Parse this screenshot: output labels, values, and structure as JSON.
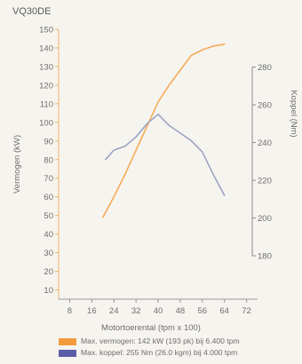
{
  "chart_data": {
    "type": "line",
    "title": "VQ30DE",
    "xlabel": "Motortoerental (tpm x 100)",
    "ylabel_left": "Vermogen (kW)",
    "ylabel_right": "Koppel (Nm)",
    "x_ticks": [
      8,
      16,
      24,
      32,
      40,
      48,
      56,
      64,
      72
    ],
    "xlim": [
      4,
      76
    ],
    "y_left_ticks": [
      10,
      20,
      30,
      40,
      50,
      60,
      70,
      80,
      90,
      100,
      110,
      120,
      130,
      140,
      150
    ],
    "y_left_lim": [
      5,
      150
    ],
    "y_right_ticks": [
      180,
      200,
      220,
      240,
      260,
      280
    ],
    "y_right_lim": [
      157,
      300
    ],
    "grid": false,
    "legend_position": "bottom",
    "series": [
      {
        "name": "Max. vermogen: 142 kW (193 pk) bij 6.400 tpm",
        "axis": "left",
        "color": "#f6ab5a",
        "x": [
          20,
          24,
          28,
          32,
          36,
          40,
          44,
          48,
          52,
          56,
          60,
          64
        ],
        "y": [
          49,
          60,
          72,
          85,
          98,
          111,
          120,
          128,
          136,
          139,
          141,
          142
        ]
      },
      {
        "name": "Max. koppel: 255 Nm (26.0 kgm) bij 4.000 tpm",
        "axis": "right",
        "color": "#9aa4c2",
        "x": [
          21,
          24,
          28,
          32,
          36,
          40,
          44,
          48,
          52,
          56,
          60,
          64
        ],
        "y": [
          231,
          236,
          238,
          243,
          250,
          255,
          249,
          245,
          241,
          235,
          223,
          212
        ]
      }
    ]
  },
  "legend": {
    "items": [
      {
        "label": "Max. vermogen: 142 kW (193 pk) bij 6.400 tpm",
        "color": "#f49a3e"
      },
      {
        "label": "Max. koppel: 255 Nm (26.0 kgm) bij 4.000 tpm",
        "color": "#5a5ea8"
      }
    ]
  }
}
